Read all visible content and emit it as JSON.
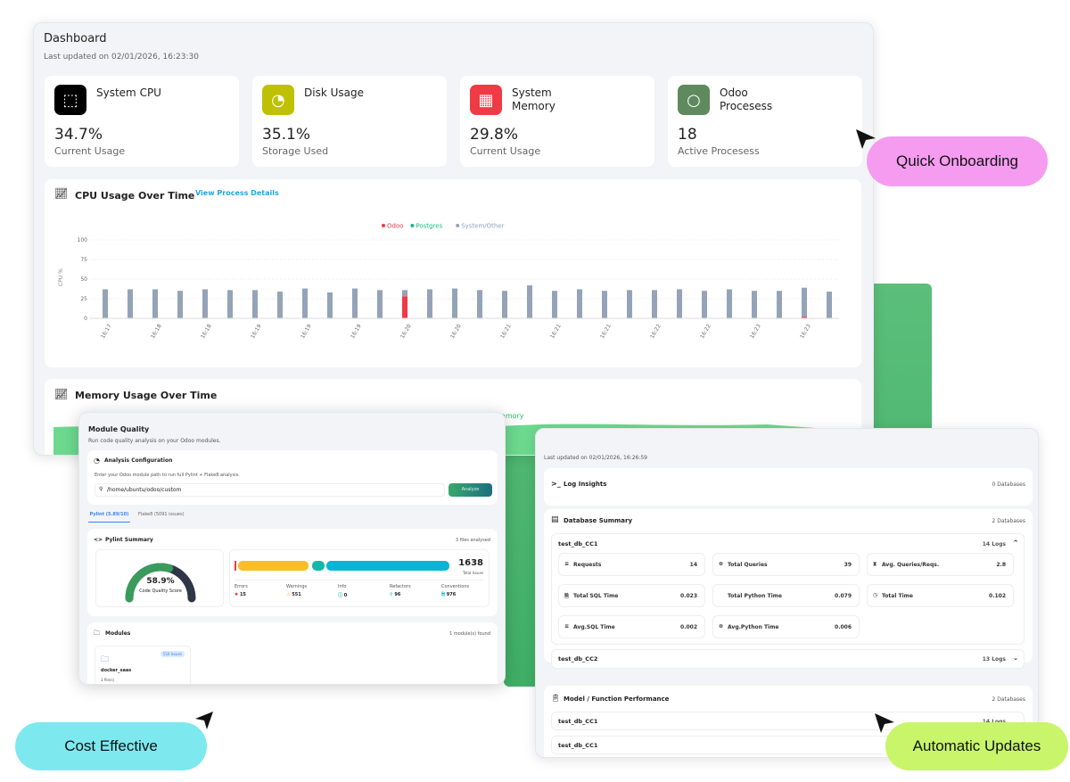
{
  "dashboard": {
    "title": "Dashboard",
    "updated": "Last updated on 02/01/2026, 16:23:30",
    "stats": [
      {
        "title": "System CPU",
        "value": "34.7%",
        "sub": "Current Usage",
        "icon": "cpu-icon",
        "color": "#000000"
      },
      {
        "title": "Disk Usage",
        "value": "35.1%",
        "sub": "Storage Used",
        "icon": "pie-chart-icon",
        "color": "#bfc000"
      },
      {
        "title": "System Memory",
        "value": "29.8%",
        "sub": "Current Usage",
        "icon": "memory-icon",
        "color": "#ef3b45"
      },
      {
        "title": "Odoo Procesess",
        "value": "18",
        "sub": "Active Procesess",
        "icon": "circle-icon",
        "color": "#5e8a5e"
      }
    ],
    "cpu_title": "CPU Usage Over Time",
    "cpu_link": "View Process Details",
    "memory_title": "Memory Usage Over Time",
    "memory_legend": "Memory"
  },
  "chart_data": {
    "type": "bar",
    "stacked": true,
    "ylabel": "CPU %",
    "ylim": [
      0,
      100
    ],
    "yticks": [
      0,
      25,
      50,
      75,
      100
    ],
    "grid": true,
    "legend": "top-center",
    "x_tick_labels": [
      "16:17",
      "16:18",
      "16:18",
      "16:19",
      "16:19",
      "16:19",
      "16:20",
      "16:20",
      "16:21",
      "16:21",
      "16:21",
      "16:22",
      "16:22",
      "16:23",
      "16:23"
    ],
    "series": [
      {
        "name": "Odoo",
        "color": "#ef3b45",
        "values": [
          0,
          0,
          0,
          0,
          0,
          0,
          0,
          0.5,
          0.5,
          0,
          0,
          0.5,
          28,
          0,
          0,
          0,
          0,
          0,
          0.5,
          0,
          0,
          0,
          0.5,
          0.5,
          0,
          0,
          0.5,
          0,
          2,
          0
        ]
      },
      {
        "name": "Postgres",
        "color": "#10b981",
        "values": [
          0,
          0,
          0,
          0,
          0,
          0,
          0,
          0,
          0,
          0,
          0,
          0,
          0,
          0,
          0,
          0,
          0,
          0,
          0,
          0,
          0,
          0,
          0,
          0,
          0,
          0,
          0,
          0,
          0,
          0
        ]
      },
      {
        "name": "System/Other",
        "color": "#94a3b8",
        "values": [
          37,
          37,
          37,
          35,
          37,
          36,
          36,
          33.5,
          37.5,
          33,
          38,
          35.5,
          8,
          37,
          38,
          36,
          35,
          42,
          34.5,
          37,
          35,
          36,
          35.5,
          36.5,
          35,
          37,
          34.5,
          35,
          37,
          34
        ]
      }
    ]
  },
  "module": {
    "title": "Module Quality",
    "subtitle": "Run code quality analysis on your Odoo modules.",
    "config_title": "Analysis Configuration",
    "config_hint": "Enter your Odoo module path to run full Pylint + Flake8 analysis.",
    "path": "/home/ubuntu/odoo/custom",
    "analyze": "Analyze",
    "tabs": [
      "Pylint (5.89/10)",
      "Flake8 (5091 issues)"
    ],
    "summary_title": "Pylint Summary",
    "files": "3 files analysed",
    "score": "58.9%",
    "score_value": 58.9,
    "score_label": "Code Quality Score",
    "total": "1638",
    "total_label": "Total Issues",
    "counts": [
      {
        "label": "Errors",
        "value": "15",
        "color": "#ef3b45"
      },
      {
        "label": "Warnings",
        "value": "551",
        "color": "#fbbf24"
      },
      {
        "label": "Info",
        "value": "0",
        "color": "#14b8a6"
      },
      {
        "label": "Refactors",
        "value": "96",
        "color": "#14b8a6"
      },
      {
        "label": "Conventions",
        "value": "976",
        "color": "#06b6d4"
      }
    ],
    "modules_title": "Modules",
    "modules_found": "1 module(s) found",
    "module_name": "docker_saas",
    "module_badge": "550 Issues",
    "module_files": "3 file(s)"
  },
  "logs": {
    "updated": "Last updated on 02/01/2026, 16:26:59",
    "insights": "Log Insights",
    "insights_count": "0 Databases",
    "db_title": "Database Summary",
    "db_count": "2 Databases",
    "db1": "test_db_CC1",
    "db1_logs": "14 Logs",
    "metrics": [
      {
        "label": "Requests",
        "value": "14"
      },
      {
        "label": "Total Queries",
        "value": "39"
      },
      {
        "label": "Avg. Queries/Reqs.",
        "value": "2.8"
      },
      {
        "label": "Total SQL Time",
        "value": "0.023"
      },
      {
        "label": "Total Python Time",
        "value": "0.079"
      },
      {
        "label": "Total Time",
        "value": "0.102"
      },
      {
        "label": "Avg.SQL Time",
        "value": "0.002"
      },
      {
        "label": "Avg.Python Time",
        "value": "0.006"
      }
    ],
    "db2": "test_db_CC2",
    "db2_logs": "13 Logs",
    "perf_title": "Model / Function Performance",
    "perf_count": "2 Databases",
    "perf_rows": [
      {
        "name": "test_db_CC1",
        "logs": "14 Logs"
      },
      {
        "name": "test_db_CC1",
        "logs": ""
      }
    ]
  },
  "pills": {
    "onboarding": "Quick Onboarding",
    "cost": "Cost Effective",
    "updates": "Automatic Updates"
  },
  "colors": {
    "onboarding": "#f59cf0",
    "cost": "#7ee8ef",
    "updates": "#c8f56a",
    "link": "#1ea7e0"
  }
}
